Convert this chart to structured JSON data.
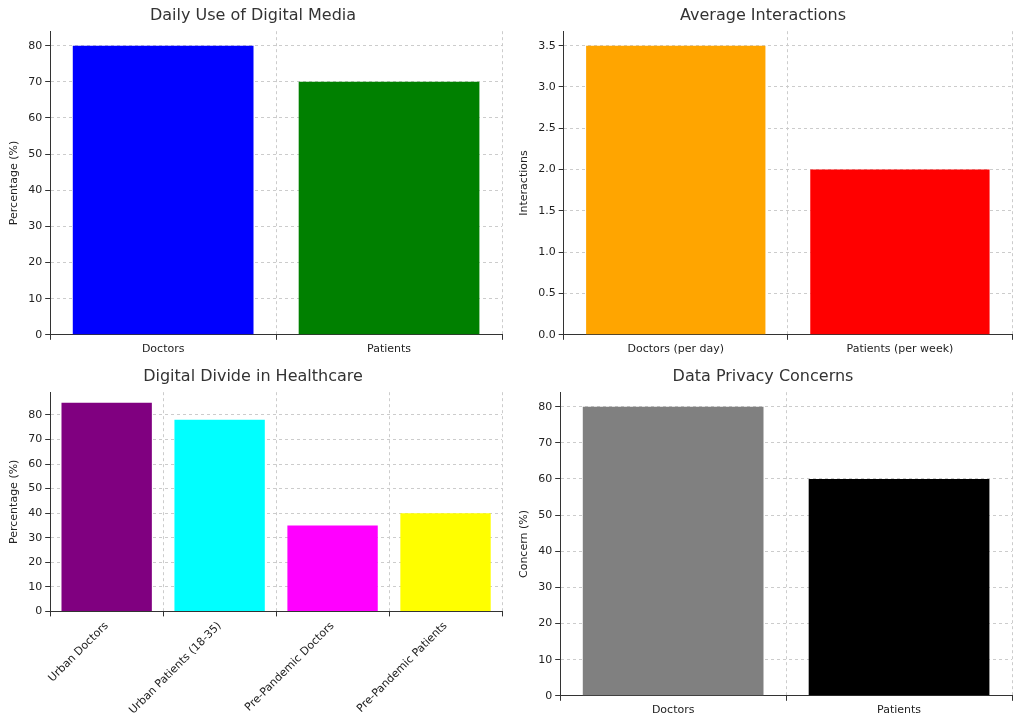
{
  "chart_data": [
    {
      "type": "bar",
      "title": "Daily Use of Digital Media",
      "ylabel": "Percentage (%)",
      "categories": [
        "Doctors",
        "Patients"
      ],
      "values": [
        80,
        70
      ],
      "colors": [
        "#0000ff",
        "#008000"
      ],
      "ylim": [
        0,
        84
      ],
      "yticks": [
        0,
        10,
        20,
        30,
        40,
        50,
        60,
        70,
        80
      ],
      "grid": true
    },
    {
      "type": "bar",
      "title": "Average Interactions",
      "ylabel": "Interactions",
      "categories": [
        "Doctors (per day)",
        "Patients (per week)"
      ],
      "values": [
        3.5,
        2.0
      ],
      "colors": [
        "#ffa500",
        "#ff0000"
      ],
      "ylim": [
        0,
        3.675
      ],
      "yticks": [
        {
          "value": 0,
          "label": "0.0"
        },
        {
          "value": 0.5,
          "label": "0.5"
        },
        {
          "value": 1,
          "label": "1.0"
        },
        {
          "value": 1.5,
          "label": "1.5"
        },
        {
          "value": 2,
          "label": "2.0"
        },
        {
          "value": 2.5,
          "label": "2.5"
        },
        {
          "value": 3,
          "label": "3.0"
        },
        {
          "value": 3.5,
          "label": "3.5"
        }
      ],
      "grid": true
    },
    {
      "type": "bar",
      "title": "Digital Divide in Healthcare",
      "ylabel": "Percentage (%)",
      "categories": [
        "Urban Doctors",
        "Urban Patients (18-35)",
        "Pre-Pandemic Doctors",
        "Pre-Pandemic Patients"
      ],
      "values": [
        85,
        78,
        35,
        40
      ],
      "colors": [
        "#800080",
        "#00ffff",
        "#ff00ff",
        "#ffff00"
      ],
      "ylim": [
        0,
        89.25
      ],
      "yticks": [
        0,
        10,
        20,
        30,
        40,
        50,
        60,
        70,
        80
      ],
      "grid": true
    },
    {
      "type": "bar",
      "title": "Data Privacy Concerns",
      "ylabel": "Concern (%)",
      "categories": [
        "Doctors",
        "Patients"
      ],
      "values": [
        80,
        60
      ],
      "colors": [
        "#808080",
        "#000000"
      ],
      "ylim": [
        0,
        84
      ],
      "yticks": [
        0,
        10,
        20,
        30,
        40,
        50,
        60,
        70,
        80
      ],
      "grid": true
    }
  ]
}
